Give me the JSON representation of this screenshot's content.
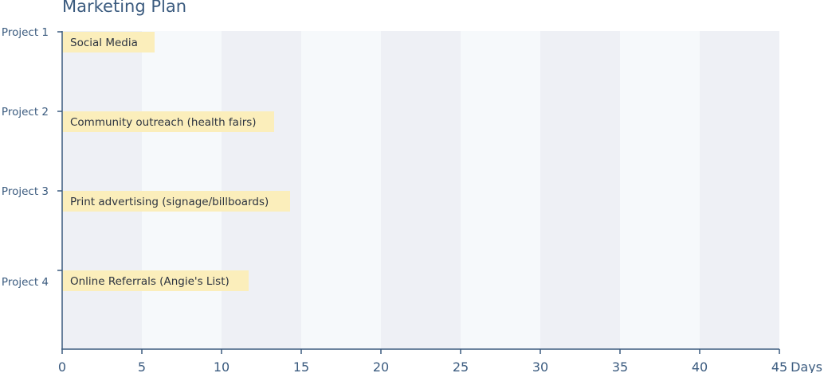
{
  "chart_data": {
    "type": "bar",
    "orientation": "horizontal",
    "title": "Marketing Plan",
    "xlabel": "Days",
    "ylabel": "",
    "xlim": [
      0,
      45
    ],
    "x_ticks": [
      "0",
      "5",
      "10",
      "15",
      "20",
      "25",
      "30",
      "35",
      "40",
      "45"
    ],
    "x_unit_label": "Days",
    "categories": [
      "Project 1",
      "Project 2",
      "Project 3",
      "Project 4"
    ],
    "series": [
      {
        "values": [
          5.8,
          13.3,
          14.3,
          11.7
        ],
        "task_labels": [
          "Social Media",
          "Community outreach (health fairs)",
          "Print advertising (signage/billboards)",
          "Online Referrals (Angie's List)"
        ]
      }
    ],
    "grid": "alternating vertical bands",
    "colors": {
      "bar": "#fbeebb",
      "band_dark": "#eef0f5",
      "band_light": "#f6f9fb",
      "axis": "#3b5b7f",
      "text": "#2d3440"
    }
  }
}
